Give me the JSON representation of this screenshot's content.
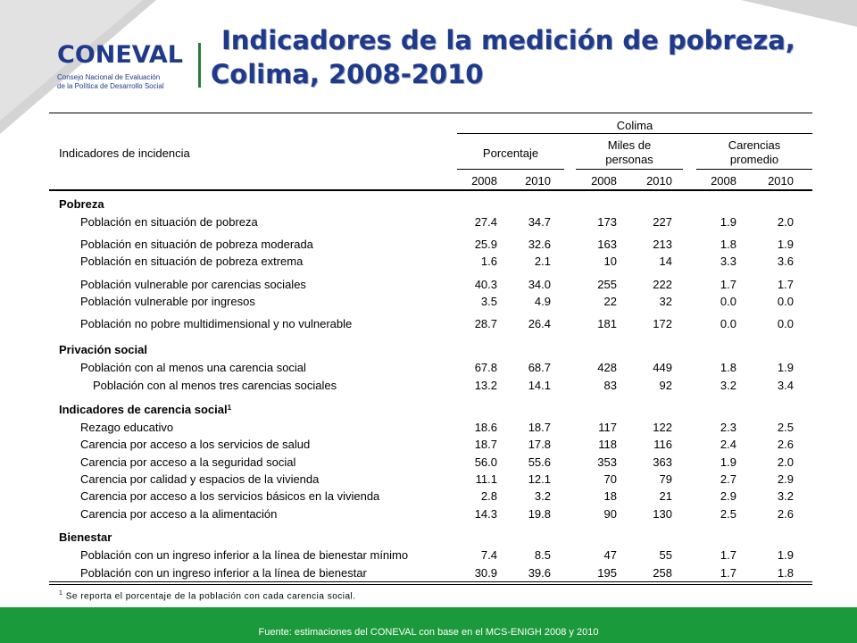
{
  "header": {
    "logo_word": "CONEVAL",
    "logo_subtitle_1": "Consejo Nacional de Evaluación",
    "logo_subtitle_2": "de la Política de Desarrollo Social",
    "title_line1": "Indicadores de la medición de pobreza,",
    "title_line2": "Colima, 2008-2010"
  },
  "table": {
    "col_header_label": "Indicadores de incidencia",
    "group_label": "Colima",
    "sub_groups": [
      "Porcentaje",
      "Miles de",
      "personas",
      "Carencias",
      "promedio"
    ],
    "years": [
      "2008",
      "2010",
      "2008",
      "2010",
      "2008",
      "2010"
    ],
    "sections": [
      {
        "title": "Pobreza",
        "rows": [
          {
            "label": "Población en situación de pobreza",
            "v": [
              "27.4",
              "34.7",
              "173",
              "227",
              "1.9",
              "2.0"
            ]
          },
          {
            "label": "Población en situación de pobreza moderada",
            "v": [
              "25.9",
              "32.6",
              "163",
              "213",
              "1.8",
              "1.9"
            ]
          },
          {
            "label": "Población en situación de pobreza extrema",
            "v": [
              "1.6",
              "2.1",
              "10",
              "14",
              "3.3",
              "3.6"
            ]
          },
          {
            "label": "Población vulnerable por carencias sociales",
            "v": [
              "40.3",
              "34.0",
              "255",
              "222",
              "1.7",
              "1.7"
            ]
          },
          {
            "label": "Población vulnerable por ingresos",
            "v": [
              "3.5",
              "4.9",
              "22",
              "32",
              "0.0",
              "0.0"
            ]
          },
          {
            "label": "Población no pobre multidimensional y no vulnerable",
            "v": [
              "28.7",
              "26.4",
              "181",
              "172",
              "0.0",
              "0.0"
            ]
          }
        ]
      },
      {
        "title": "Privación social",
        "rows": [
          {
            "label": "Población con al menos una carencia social",
            "v": [
              "67.8",
              "68.7",
              "428",
              "449",
              "1.8",
              "1.9"
            ]
          },
          {
            "label": "Población con al menos tres carencias sociales",
            "v": [
              "13.2",
              "14.1",
              "83",
              "92",
              "3.2",
              "3.4"
            ]
          }
        ]
      },
      {
        "title": "Indicadores de carencia social",
        "title_sup": "1",
        "rows": [
          {
            "label": "Rezago educativo",
            "v": [
              "18.6",
              "18.7",
              "117",
              "122",
              "2.3",
              "2.5"
            ]
          },
          {
            "label": "Carencia por acceso a los servicios de salud",
            "v": [
              "18.7",
              "17.8",
              "118",
              "116",
              "2.4",
              "2.6"
            ]
          },
          {
            "label": "Carencia por acceso a la seguridad social",
            "v": [
              "56.0",
              "55.6",
              "353",
              "363",
              "1.9",
              "2.0"
            ]
          },
          {
            "label": "Carencia por calidad y espacios de la vivienda",
            "v": [
              "11.1",
              "12.1",
              "70",
              "79",
              "2.7",
              "2.9"
            ]
          },
          {
            "label": "Carencia por acceso a los servicios básicos en la vivienda",
            "v": [
              "2.8",
              "3.2",
              "18",
              "21",
              "2.9",
              "3.2"
            ]
          },
          {
            "label": "Carencia por acceso a la alimentación",
            "v": [
              "14.3",
              "19.8",
              "90",
              "130",
              "2.5",
              "2.6"
            ]
          }
        ]
      },
      {
        "title": "Bienestar",
        "rows": [
          {
            "label": "Población con un ingreso inferior a la línea de bienestar mínimo",
            "v": [
              "7.4",
              "8.5",
              "47",
              "55",
              "1.7",
              "1.9"
            ]
          },
          {
            "label": "Población con un ingreso inferior a la línea de bienestar",
            "v": [
              "30.9",
              "39.6",
              "195",
              "258",
              "1.7",
              "1.8"
            ]
          }
        ]
      }
    ]
  },
  "note_sup": "1",
  "note": "Se reporta el porcentaje de la población con cada carencia social.",
  "footer": "Fuente: estimaciones del CONEVAL con base en el MCS-ENIGH 2008 y 2010",
  "colors": {
    "title": "#1f3a8a",
    "footer_bg": "#1a9a3a",
    "corner": "#d0d0d0"
  }
}
